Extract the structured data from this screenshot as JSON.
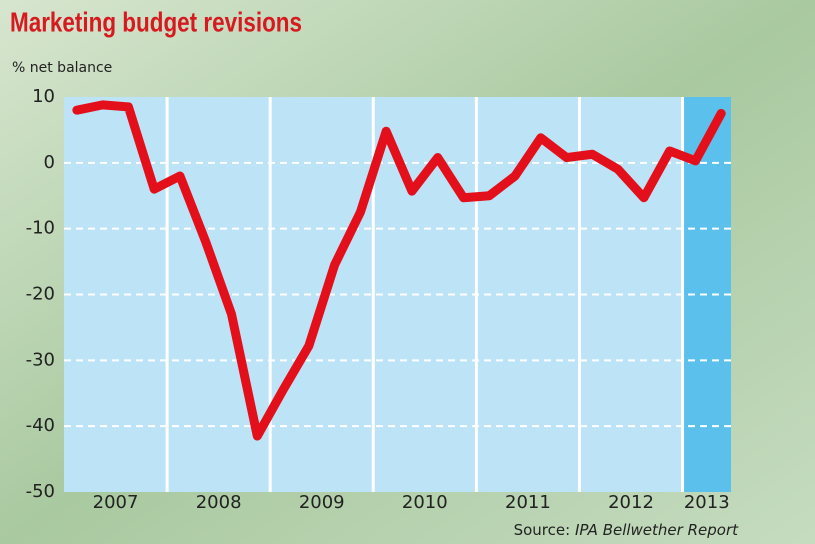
{
  "chart_data": {
    "type": "line",
    "title": "Marketing budget revisions",
    "y_label": "% net balance",
    "source_prefix": "Source: ",
    "source": "IPA Bellwether Report",
    "x": [
      2007.125,
      2007.375,
      2007.625,
      2007.875,
      2008.125,
      2008.375,
      2008.625,
      2008.875,
      2009.125,
      2009.375,
      2009.625,
      2009.875,
      2010.125,
      2010.375,
      2010.625,
      2010.875,
      2011.125,
      2011.375,
      2011.625,
      2011.875,
      2012.125,
      2012.375,
      2012.625,
      2012.875,
      2013.125,
      2013.375
    ],
    "series": [
      {
        "name": "% net balance",
        "color": "#e3101b",
        "values": [
          8,
          8.8,
          8.5,
          -4,
          -2,
          -12,
          -23,
          -41.5,
          -34.5,
          -27.8,
          -15.5,
          -7.5,
          4.8,
          -4.3,
          0.8,
          -5.3,
          -5,
          -2,
          3.8,
          0.8,
          1.3,
          -1,
          -5.3,
          1.8,
          0.3,
          7.5
        ]
      }
    ],
    "xlim": [
      2007,
      2013.47
    ],
    "xticks": [
      2007,
      2008,
      2009,
      2010,
      2011,
      2012,
      2013
    ],
    "ylim": [
      -50,
      10
    ],
    "yticks": [
      10,
      0,
      -10,
      -20,
      -30,
      -40,
      -50
    ],
    "plot_color": "#bde3f7",
    "highlight_from": 2013,
    "highlight_color": "#5bc0ec",
    "grid": true
  }
}
